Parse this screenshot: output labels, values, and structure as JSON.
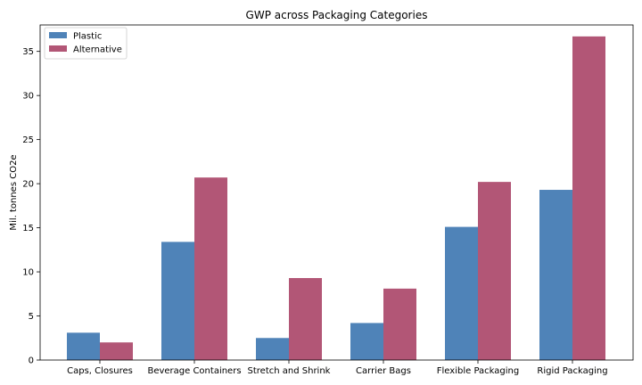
{
  "chart_data": {
    "type": "bar",
    "title": "GWP across Packaging Categories",
    "xlabel": "",
    "ylabel": "Mil. tonnes CO2e",
    "ylim": [
      0,
      38
    ],
    "yticks": [
      0,
      5,
      10,
      15,
      20,
      25,
      30,
      35
    ],
    "grid": false,
    "legend_position": "top-left",
    "categories": [
      "Caps, Closures",
      "Beverage Containers",
      "Stretch and Shrink",
      "Carrier Bags",
      "Flexible Packaging",
      "Rigid Packaging"
    ],
    "series": [
      {
        "name": "Plastic",
        "color": "#4f83b8",
        "values": [
          3.1,
          13.4,
          2.5,
          4.2,
          15.1,
          19.3
        ]
      },
      {
        "name": "Alternative",
        "color": "#b25676",
        "values": [
          2.0,
          20.7,
          9.3,
          8.1,
          20.2,
          36.7
        ]
      }
    ]
  }
}
